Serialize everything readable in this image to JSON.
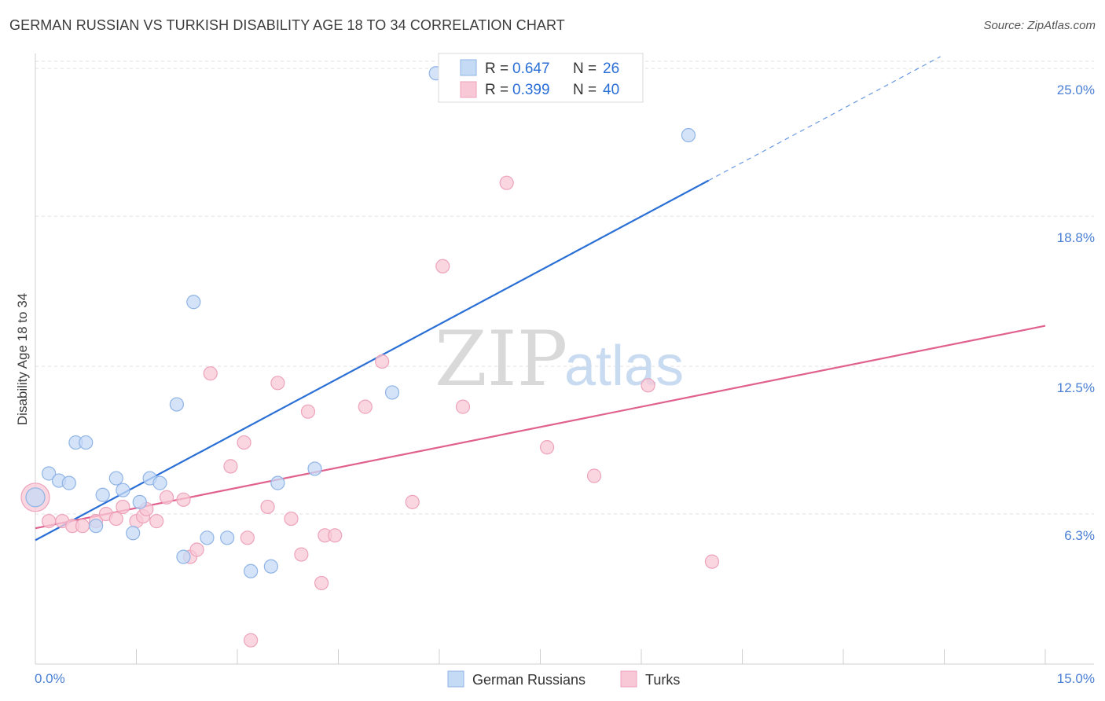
{
  "header": {
    "title": "GERMAN RUSSIAN VS TURKISH DISABILITY AGE 18 TO 34 CORRELATION CHART",
    "source": "Source: ZipAtlas.com"
  },
  "watermark": {
    "zip": "ZIP",
    "atlas": "atlas"
  },
  "colors": {
    "blue_fill": "#c5daf5",
    "blue_stroke": "#8fb4e6",
    "blue_line": "#2a6fd6",
    "pink_fill": "#f8c8d6",
    "pink_stroke": "#eda3bb",
    "pink_line": "#e0608e",
    "grid": "#e2e2e2",
    "tick_text": "#4a7fd4"
  },
  "legend": {
    "rows": [
      {
        "r_label": "R = ",
        "r_value": "0.647",
        "n_label": "N = ",
        "n_value": "26"
      },
      {
        "r_label": "R = ",
        "r_value": "0.399",
        "n_label": "N = ",
        "n_value": "40"
      }
    ]
  },
  "chart_data": {
    "type": "scatter",
    "title": "GERMAN RUSSIAN VS TURKISH DISABILITY AGE 18 TO 34 CORRELATION CHART",
    "xlabel": "",
    "ylabel": "Disability Age 18 to 34",
    "xlim": [
      0,
      15
    ],
    "ylim": [
      0,
      25.5
    ],
    "x_tick_labels": [
      "0.0%",
      "15.0%"
    ],
    "y_ticks": [
      6.3,
      12.5,
      18.8,
      25.0
    ],
    "y_tick_labels": [
      "6.3%",
      "12.5%",
      "18.8%",
      "25.0%"
    ],
    "grid": true,
    "legend_position": "top-center",
    "series": [
      {
        "name": "German Russians",
        "r": 0.647,
        "n": 26,
        "points": [
          [
            0.0,
            7.0
          ],
          [
            0.2,
            8.0
          ],
          [
            0.35,
            7.7
          ],
          [
            0.5,
            7.6
          ],
          [
            0.6,
            9.3
          ],
          [
            0.75,
            9.3
          ],
          [
            0.9,
            5.8
          ],
          [
            1.0,
            7.1
          ],
          [
            1.2,
            7.8
          ],
          [
            1.3,
            7.3
          ],
          [
            1.45,
            5.5
          ],
          [
            1.55,
            6.8
          ],
          [
            1.7,
            7.8
          ],
          [
            1.85,
            7.6
          ],
          [
            2.1,
            10.9
          ],
          [
            2.2,
            4.5
          ],
          [
            2.35,
            15.2
          ],
          [
            2.55,
            5.3
          ],
          [
            2.85,
            5.3
          ],
          [
            3.2,
            3.9
          ],
          [
            3.5,
            4.1
          ],
          [
            3.6,
            7.6
          ],
          [
            4.15,
            8.2
          ],
          [
            5.3,
            11.4
          ],
          [
            5.95,
            24.8
          ],
          [
            9.7,
            22.2
          ]
        ],
        "trend": {
          "x0": 0.0,
          "y0": 5.2,
          "x1": 10.0,
          "y1": 20.3,
          "dash_to_x": 15.0
        }
      },
      {
        "name": "Turks",
        "r": 0.399,
        "n": 40,
        "points": [
          [
            0.0,
            7.0
          ],
          [
            0.2,
            6.0
          ],
          [
            0.4,
            6.0
          ],
          [
            0.55,
            5.8
          ],
          [
            0.7,
            5.8
          ],
          [
            0.9,
            6.0
          ],
          [
            1.05,
            6.3
          ],
          [
            1.2,
            6.1
          ],
          [
            1.3,
            6.6
          ],
          [
            1.5,
            6.0
          ],
          [
            1.6,
            6.2
          ],
          [
            1.65,
            6.5
          ],
          [
            1.8,
            6.0
          ],
          [
            1.95,
            7.0
          ],
          [
            2.2,
            6.9
          ],
          [
            2.3,
            4.5
          ],
          [
            2.4,
            4.8
          ],
          [
            2.6,
            12.2
          ],
          [
            2.9,
            8.3
          ],
          [
            3.1,
            9.3
          ],
          [
            3.15,
            5.3
          ],
          [
            3.2,
            1.0
          ],
          [
            3.45,
            6.6
          ],
          [
            3.6,
            11.8
          ],
          [
            3.8,
            6.1
          ],
          [
            3.95,
            4.6
          ],
          [
            4.05,
            10.6
          ],
          [
            4.25,
            3.4
          ],
          [
            4.3,
            5.4
          ],
          [
            4.45,
            5.4
          ],
          [
            4.9,
            10.8
          ],
          [
            5.15,
            12.7
          ],
          [
            5.6,
            6.8
          ],
          [
            6.05,
            16.7
          ],
          [
            6.35,
            10.8
          ],
          [
            7.0,
            20.2
          ],
          [
            7.6,
            9.1
          ],
          [
            8.3,
            7.9
          ],
          [
            9.1,
            11.7
          ],
          [
            10.05,
            4.3
          ]
        ],
        "trend": {
          "x0": 0.0,
          "y0": 5.7,
          "x1": 15.0,
          "y1": 14.2
        }
      }
    ]
  },
  "bottom_legend": [
    {
      "label": "German Russians"
    },
    {
      "label": "Turks"
    }
  ]
}
